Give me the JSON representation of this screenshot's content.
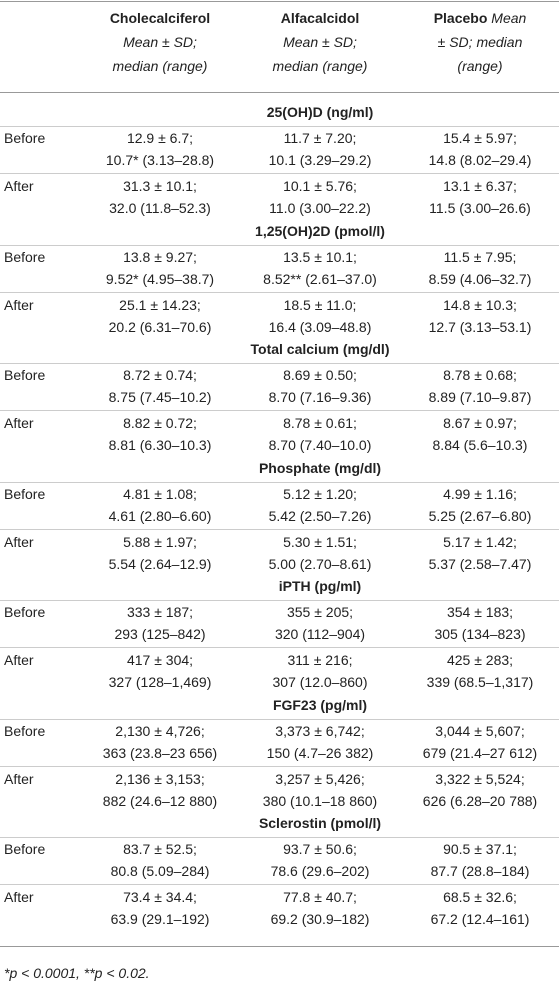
{
  "table": {
    "columns": [
      {
        "name": "Cholecalciferol",
        "sub": [
          "Mean ± SD;",
          "median (range)"
        ]
      },
      {
        "name": "Alfacalcidol",
        "sub": [
          "Mean ± SD;",
          "median (range)"
        ]
      },
      {
        "name": "Placebo",
        "sub": [
          "Mean",
          "± SD; median",
          "(range)"
        ]
      }
    ],
    "sections": [
      {
        "title": "25(OH)D (ng/ml)",
        "rows": [
          {
            "label": "Before",
            "cells": [
              [
                "12.9 ± 6.7;",
                "10.7* (3.13–28.8)"
              ],
              [
                "11.7 ± 7.20;",
                "10.1 (3.29–29.2)"
              ],
              [
                "15.4 ± 5.97;",
                "14.8 (8.02–29.4)"
              ]
            ]
          },
          {
            "label": "After",
            "cells": [
              [
                "31.3 ± 10.1;",
                "32.0 (11.8–52.3)"
              ],
              [
                "10.1 ± 5.76;",
                "11.0 (3.00–22.2)"
              ],
              [
                "13.1 ± 6.37;",
                "11.5 (3.00–26.6)"
              ]
            ]
          }
        ]
      },
      {
        "title": "1,25(OH)2D (pmol/l)",
        "rows": [
          {
            "label": "Before",
            "cells": [
              [
                "13.8 ± 9.27;",
                "9.52* (4.95–38.7)"
              ],
              [
                "13.5 ± 10.1;",
                "8.52** (2.61–37.0)"
              ],
              [
                "11.5 ± 7.95;",
                "8.59 (4.06–32.7)"
              ]
            ]
          },
          {
            "label": "After",
            "cells": [
              [
                "25.1 ± 14.23;",
                "20.2 (6.31–70.6)"
              ],
              [
                "18.5 ± 11.0;",
                "16.4 (3.09–48.8)"
              ],
              [
                "14.8 ± 10.3;",
                "12.7 (3.13–53.1)"
              ]
            ]
          }
        ]
      },
      {
        "title": "Total calcium (mg/dl)",
        "rows": [
          {
            "label": "Before",
            "cells": [
              [
                "8.72 ± 0.74;",
                "8.75 (7.45–10.2)"
              ],
              [
                "8.69 ± 0.50;",
                "8.70 (7.16–9.36)"
              ],
              [
                "8.78 ± 0.68;",
                "8.89 (7.10–9.87)"
              ]
            ]
          },
          {
            "label": "After",
            "cells": [
              [
                "8.82 ± 0.72;",
                "8.81 (6.30–10.3)"
              ],
              [
                "8.78 ± 0.61;",
                "8.70 (7.40–10.0)"
              ],
              [
                "8.67 ± 0.97;",
                "8.84 (5.6–10.3)"
              ]
            ]
          }
        ]
      },
      {
        "title": "Phosphate (mg/dl)",
        "rows": [
          {
            "label": "Before",
            "cells": [
              [
                "4.81 ± 1.08;",
                "4.61 (2.80–6.60)"
              ],
              [
                "5.12 ± 1.20;",
                "5.42 (2.50–7.26)"
              ],
              [
                "4.99 ± 1.16;",
                "5.25 (2.67–6.80)"
              ]
            ]
          },
          {
            "label": "After",
            "cells": [
              [
                "5.88 ± 1.97;",
                "5.54 (2.64–12.9)"
              ],
              [
                "5.30 ± 1.51;",
                "5.00 (2.70–8.61)"
              ],
              [
                "5.17 ± 1.42;",
                "5.37 (2.58–7.47)"
              ]
            ]
          }
        ]
      },
      {
        "title": "iPTH (pg/ml)",
        "rows": [
          {
            "label": "Before",
            "cells": [
              [
                "333 ± 187;",
                "293 (125–842)"
              ],
              [
                "355 ± 205;",
                "320 (112–904)"
              ],
              [
                "354 ± 183;",
                "305 (134–823)"
              ]
            ]
          },
          {
            "label": "After",
            "cells": [
              [
                "417 ± 304;",
                "327 (128–1,469)"
              ],
              [
                "311 ± 216;",
                "307 (12.0–860)"
              ],
              [
                "425 ± 283;",
                "339 (68.5–1,317)"
              ]
            ]
          }
        ]
      },
      {
        "title": "FGF23 (pg/ml)",
        "rows": [
          {
            "label": "Before",
            "cells": [
              [
                "2,130 ± 4,726;",
                "363 (23.8–23 656)"
              ],
              [
                "3,373 ± 6,742;",
                "150 (4.7–26 382)"
              ],
              [
                "3,044 ± 5,607;",
                "679 (21.4–27 612)"
              ]
            ]
          },
          {
            "label": "After",
            "cells": [
              [
                "2,136 ± 3,153;",
                "882 (24.6–12 880)"
              ],
              [
                "3,257 ± 5,426;",
                "380 (10.1–18 860)"
              ],
              [
                "3,322 ± 5,524;",
                "626 (6.28–20 788)"
              ]
            ]
          }
        ]
      },
      {
        "title": "Sclerostin (pmol/l)",
        "rows": [
          {
            "label": "Before",
            "cells": [
              [
                "83.7 ± 52.5;",
                "80.8 (5.09–284)"
              ],
              [
                "93.7 ± 50.6;",
                "78.6 (29.6–202)"
              ],
              [
                "90.5 ± 37.1;",
                "87.7 (28.8–184)"
              ]
            ]
          },
          {
            "label": "After",
            "cells": [
              [
                "73.4 ± 34.4;",
                "63.9 (29.1–192)"
              ],
              [
                "77.8 ± 40.7;",
                "69.2 (30.9–182)"
              ],
              [
                "68.5 ± 32.6;",
                "67.2 (12.4–161)"
              ]
            ]
          }
        ]
      }
    ],
    "footnote": "*p < 0.0001, **p < 0.02."
  }
}
